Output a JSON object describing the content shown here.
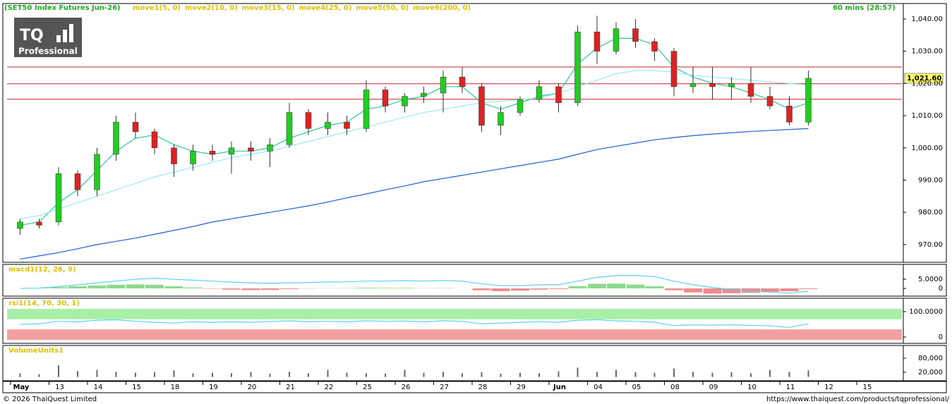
{
  "header": {
    "instrument": "(SET50 Index Futures Jun-26)",
    "indicators": [
      "move1(5, 0)",
      "move2(10, 0)",
      "move3(15, 0)",
      "move4(25, 0)",
      "move5(50, 0)",
      "move6(200, 0)"
    ],
    "timeframe": "60 mins (28:57)"
  },
  "logo": {
    "brand": "TQ",
    "sub": "Professional"
  },
  "chart_data": [
    {
      "type": "candlestick",
      "x_labels": [
        "May",
        "13",
        "14",
        "15",
        "18",
        "19",
        "20",
        "21",
        "22",
        "25",
        "26",
        "27",
        "28",
        "29",
        "Jun",
        "04",
        "05",
        "08",
        "09",
        "10",
        "11",
        "12",
        "15"
      ],
      "candles": [
        [
          975,
          978,
          973,
          977
        ],
        [
          977,
          978,
          975,
          976
        ],
        [
          977,
          994,
          976,
          992
        ],
        [
          992,
          993,
          985,
          987
        ],
        [
          987,
          1000,
          985,
          998
        ],
        [
          998,
          1010,
          996,
          1008
        ],
        [
          1008,
          1011,
          1003,
          1005
        ],
        [
          1005,
          1006,
          998,
          1000
        ],
        [
          1000,
          1001,
          991,
          995
        ],
        [
          995,
          1001,
          993,
          999
        ],
        [
          999,
          1001,
          996,
          998
        ],
        [
          998,
          1002,
          992,
          1000
        ],
        [
          1000,
          1002,
          996,
          999
        ],
        [
          999,
          1003,
          994,
          1001
        ],
        [
          1001,
          1014,
          1000,
          1011
        ],
        [
          1011,
          1012,
          1004,
          1006
        ],
        [
          1006,
          1011,
          1004,
          1008
        ],
        [
          1008,
          1010,
          1004,
          1006
        ],
        [
          1006,
          1021,
          1005,
          1018
        ],
        [
          1018,
          1019,
          1011,
          1013
        ],
        [
          1013,
          1017,
          1011,
          1016
        ],
        [
          1016,
          1019,
          1014,
          1017
        ],
        [
          1017,
          1024,
          1011,
          1022
        ],
        [
          1022,
          1025,
          1017,
          1019
        ],
        [
          1019,
          1020,
          1005,
          1007
        ],
        [
          1007,
          1013,
          1004,
          1011
        ],
        [
          1011,
          1016,
          1010,
          1015
        ],
        [
          1015,
          1021,
          1014,
          1019
        ],
        [
          1019,
          1020,
          1011,
          1014
        ],
        [
          1014,
          1038,
          1013,
          1036
        ],
        [
          1036,
          1041,
          1026,
          1030
        ],
        [
          1030,
          1039,
          1029,
          1037
        ],
        [
          1037,
          1040,
          1031,
          1033
        ],
        [
          1033,
          1034,
          1027,
          1030
        ],
        [
          1030,
          1031,
          1016,
          1019
        ],
        [
          1019,
          1025,
          1017,
          1020
        ],
        [
          1020,
          1025,
          1015,
          1019
        ],
        [
          1019,
          1022,
          1015,
          1020
        ],
        [
          1020,
          1025,
          1014,
          1016
        ],
        [
          1016,
          1019,
          1012,
          1013
        ],
        [
          1013,
          1016,
          1007,
          1008
        ],
        [
          1008,
          1024,
          1007,
          1021.6
        ]
      ],
      "up_color": "#22cc22",
      "down_color": "#dd2222",
      "series": [
        {
          "name": "move1(5, 0)",
          "color": "#2ec4a0",
          "values": [
            976,
            977,
            983,
            987,
            993,
            999,
            1003,
            1004,
            1001,
            999,
            998,
            999,
            999,
            1000,
            1003,
            1005,
            1007,
            1008,
            1012,
            1013,
            1015,
            1016,
            1019,
            1019,
            1014,
            1012,
            1014,
            1016,
            1017,
            1026,
            1031,
            1034,
            1034,
            1032,
            1025,
            1022,
            1020,
            1019,
            1017,
            1015,
            1012,
            1014
          ]
        },
        {
          "name": "move5(50, 0)",
          "color": "#9be8f0",
          "values": [
            978,
            979,
            981,
            983,
            985,
            987,
            989,
            991,
            992.5,
            994,
            995.5,
            997,
            998,
            999,
            1000.5,
            1002,
            1003.5,
            1005,
            1006.5,
            1008,
            1009.5,
            1011,
            1012,
            1013,
            1014,
            1014.5,
            1015,
            1015.5,
            1017,
            1019,
            1021,
            1023,
            1024,
            1024,
            1023.5,
            1022.5,
            1022,
            1021.5,
            1021,
            1020.5,
            1020,
            1019.5
          ]
        },
        {
          "name": "move6(200, 0)",
          "color": "#1f5fd0",
          "values": [
            965.5,
            966.5,
            967.5,
            968.7,
            970,
            971,
            972,
            973.2,
            974.4,
            975.6,
            977,
            978,
            979,
            980,
            981,
            982,
            983.2,
            984.5,
            985.7,
            987,
            988.2,
            989.5,
            990.5,
            991.5,
            992.5,
            993.5,
            994.5,
            995.5,
            996.5,
            998,
            999.5,
            1000.5,
            1001.5,
            1002.5,
            1003.2,
            1003.8,
            1004.3,
            1004.7,
            1005.1,
            1005.4,
            1005.7,
            1006
          ]
        }
      ],
      "hlines": [
        1025.1,
        1019.9,
        1015.1
      ],
      "hline_color": "#cc2222",
      "last": {
        "value": 1021.6,
        "label": "1,021.60"
      },
      "ylim": [
        964.5,
        1044.8
      ],
      "yticks": [
        {
          "value": 1040,
          "label": "1,040.00"
        },
        {
          "value": 1030,
          "label": "1,030.00"
        },
        {
          "value": 1020,
          "label": "1,020.00"
        },
        {
          "value": 1010,
          "label": "1,010.00"
        },
        {
          "value": 1000,
          "label": "1,000.00"
        },
        {
          "value": 990,
          "label": "990.00"
        },
        {
          "value": 980,
          "label": "980.00"
        },
        {
          "value": 970,
          "label": "970.00"
        }
      ]
    },
    {
      "type": "macd",
      "title": "macd1(12, 26, 9)",
      "color": "#5bd0f0",
      "values": [
        0,
        0.2,
        1,
        2,
        3,
        4,
        5,
        5.5,
        5,
        4.5,
        4,
        3.5,
        3,
        2.8,
        3,
        3.2,
        3.5,
        3.6,
        4,
        4,
        4.2,
        4,
        4.3,
        4,
        2.5,
        1.5,
        1.5,
        2,
        2,
        4,
        6,
        7,
        7,
        6.5,
        4,
        2,
        0.5,
        -0.5,
        -1.5,
        -2,
        -2.5,
        -1.5
      ],
      "histogram": [
        0,
        0.2,
        0.7,
        1.2,
        1.6,
        2,
        2.2,
        2,
        1.2,
        0.5,
        -0.2,
        -0.6,
        -0.9,
        -0.8,
        -0.4,
        -0.1,
        0.1,
        0.2,
        0.4,
        0.3,
        0.3,
        0.1,
        0.2,
        0,
        -1,
        -1.5,
        -1.2,
        -0.6,
        -0.4,
        1.2,
        2.5,
        2.6,
        2.1,
        1.2,
        -1,
        -2.2,
        -2.8,
        -2.6,
        -2.4,
        -1.8,
        -1.5,
        -0.4
      ],
      "ylim": [
        -4.2,
        13.1
      ],
      "yticks": [
        {
          "value": 5,
          "label": "5.0000"
        },
        0
      ]
    },
    {
      "type": "rsi",
      "title": "rsi1(14, 70, 30, 1)",
      "color": "#5bd0f0",
      "overbought": 70,
      "oversold": 30,
      "values": [
        50,
        52,
        62,
        60,
        66,
        68,
        62,
        58,
        55,
        60,
        58,
        60,
        58,
        61,
        64,
        60,
        62,
        60,
        64,
        62,
        63,
        60,
        64,
        62,
        52,
        55,
        58,
        60,
        58,
        66,
        68,
        64,
        62,
        58,
        45,
        48,
        47,
        48,
        46,
        44,
        38,
        52
      ],
      "ylim": [
        -25,
        152.8
      ],
      "yticks": [
        {
          "value": 100,
          "label": "100.0000"
        },
        0
      ]
    },
    {
      "type": "bar",
      "title": "VolumeUnits1",
      "color": "#666666",
      "values": [
        15000,
        12000,
        50000,
        25000,
        30000,
        22000,
        18000,
        20000,
        28000,
        15000,
        18000,
        16000,
        20000,
        14000,
        22000,
        16000,
        30000,
        18000,
        16000,
        14000,
        30000,
        18000,
        22000,
        16000,
        20000,
        14000,
        18000,
        16000,
        24000,
        40000,
        22000,
        30000,
        20000,
        18000,
        36000,
        22000,
        18000,
        20000,
        16000,
        30000,
        22000,
        28000
      ],
      "ylim": [
        -16000,
        134000
      ],
      "yticks": [
        {
          "value": 80000,
          "label": "80,000"
        },
        {
          "value": 20000,
          "label": "20,000"
        }
      ]
    }
  ],
  "footer": {
    "copyright": "© 2026 ThaiQuest Limited",
    "url": "https://www.thaiquest.com/products/tqprofessional/"
  }
}
